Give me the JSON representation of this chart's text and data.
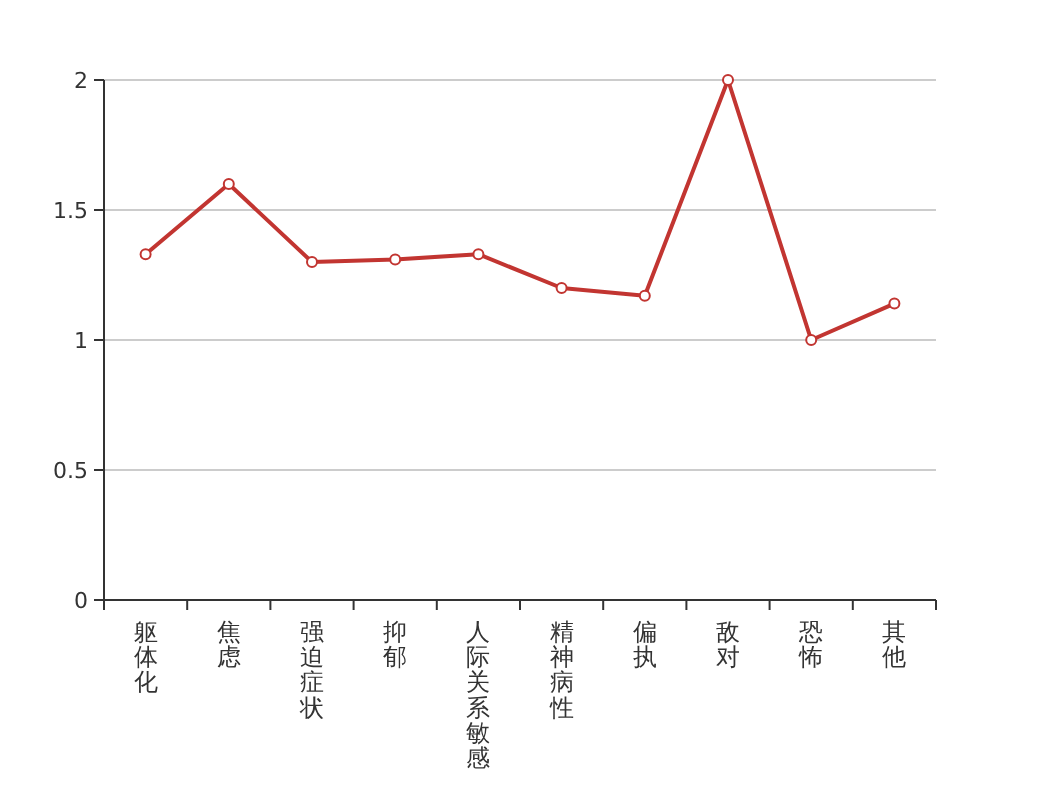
{
  "chart_data": {
    "type": "line",
    "categories": [
      "躯体化",
      "焦虑",
      "强迫症状",
      "抑郁",
      "人际关系敏感",
      "精神病性",
      "偏执",
      "敌对",
      "恐怖",
      "其他"
    ],
    "series": [
      {
        "color": "#c23531",
        "values": [
          1.33,
          1.6,
          1.3,
          1.31,
          1.33,
          1.2,
          1.17,
          2,
          1,
          1.14
        ]
      }
    ],
    "ylim": [
      0,
      2
    ],
    "yticks": [
      0,
      0.5,
      1,
      1.5,
      2
    ],
    "grid": "y",
    "marker": "circle",
    "line_style": "solid"
  }
}
